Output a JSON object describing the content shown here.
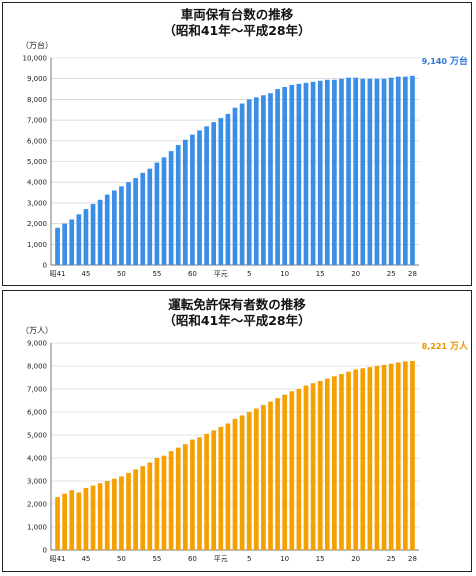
{
  "chart_data": [
    {
      "type": "bar",
      "title": "車両保有台数の推移",
      "subtitle": "（昭和41年～平成28年）",
      "ylabel": "（万台）",
      "ylim": [
        0,
        10000
      ],
      "yticks": [
        "0",
        "1,000",
        "2,000",
        "3,000",
        "4,000",
        "5,000",
        "6,000",
        "7,000",
        "8,000",
        "9,000",
        "10,000"
      ],
      "color": "#3b8ee8",
      "annotation": {
        "value": "9,140",
        "unit": "万台",
        "color": "#2f78d8"
      },
      "xtick_labels": [
        {
          "i": 0,
          "label": "昭41"
        },
        {
          "i": 4,
          "label": "45"
        },
        {
          "i": 9,
          "label": "50"
        },
        {
          "i": 14,
          "label": "55"
        },
        {
          "i": 19,
          "label": "60"
        },
        {
          "i": 23,
          "label": "平元"
        },
        {
          "i": 27,
          "label": "5"
        },
        {
          "i": 32,
          "label": "10"
        },
        {
          "i": 37,
          "label": "15"
        },
        {
          "i": 42,
          "label": "20"
        },
        {
          "i": 47,
          "label": "25"
        },
        {
          "i": 50,
          "label": "28"
        }
      ],
      "values": [
        1800,
        2000,
        2200,
        2450,
        2700,
        2950,
        3150,
        3400,
        3600,
        3800,
        4000,
        4200,
        4450,
        4650,
        4950,
        5200,
        5500,
        5800,
        6050,
        6300,
        6500,
        6700,
        6900,
        7100,
        7300,
        7600,
        7800,
        8000,
        8100,
        8200,
        8300,
        8500,
        8600,
        8700,
        8750,
        8800,
        8850,
        8900,
        8950,
        8950,
        9000,
        9050,
        9050,
        9000,
        9000,
        9000,
        9000,
        9050,
        9100,
        9100,
        9140
      ],
      "grid": "horizontal"
    },
    {
      "type": "bar",
      "title": "運転免許保有者数の推移",
      "subtitle": "（昭和41年～平成28年）",
      "ylabel": "（万人）",
      "ylim": [
        0,
        9000
      ],
      "yticks": [
        "0",
        "1,000",
        "2,000",
        "3,000",
        "4,000",
        "5,000",
        "6,000",
        "7,000",
        "8,000",
        "9,000"
      ],
      "color": "#f5a000",
      "annotation": {
        "value": "8,221",
        "unit": "万人",
        "color": "#e89400"
      },
      "xtick_labels": [
        {
          "i": 0,
          "label": "昭41"
        },
        {
          "i": 4,
          "label": "45"
        },
        {
          "i": 9,
          "label": "50"
        },
        {
          "i": 14,
          "label": "55"
        },
        {
          "i": 19,
          "label": "60"
        },
        {
          "i": 23,
          "label": "平元"
        },
        {
          "i": 27,
          "label": "5"
        },
        {
          "i": 32,
          "label": "10"
        },
        {
          "i": 37,
          "label": "15"
        },
        {
          "i": 42,
          "label": "20"
        },
        {
          "i": 47,
          "label": "25"
        },
        {
          "i": 50,
          "label": "28"
        }
      ],
      "values": [
        2300,
        2450,
        2600,
        2500,
        2700,
        2800,
        2900,
        3000,
        3100,
        3200,
        3350,
        3500,
        3650,
        3800,
        4000,
        4100,
        4300,
        4450,
        4600,
        4800,
        4900,
        5050,
        5200,
        5350,
        5500,
        5700,
        5850,
        6000,
        6150,
        6300,
        6450,
        6600,
        6750,
        6900,
        7000,
        7150,
        7250,
        7350,
        7450,
        7550,
        7650,
        7750,
        7850,
        7900,
        7950,
        8000,
        8050,
        8100,
        8150,
        8200,
        8221
      ],
      "grid": "horizontal"
    }
  ]
}
